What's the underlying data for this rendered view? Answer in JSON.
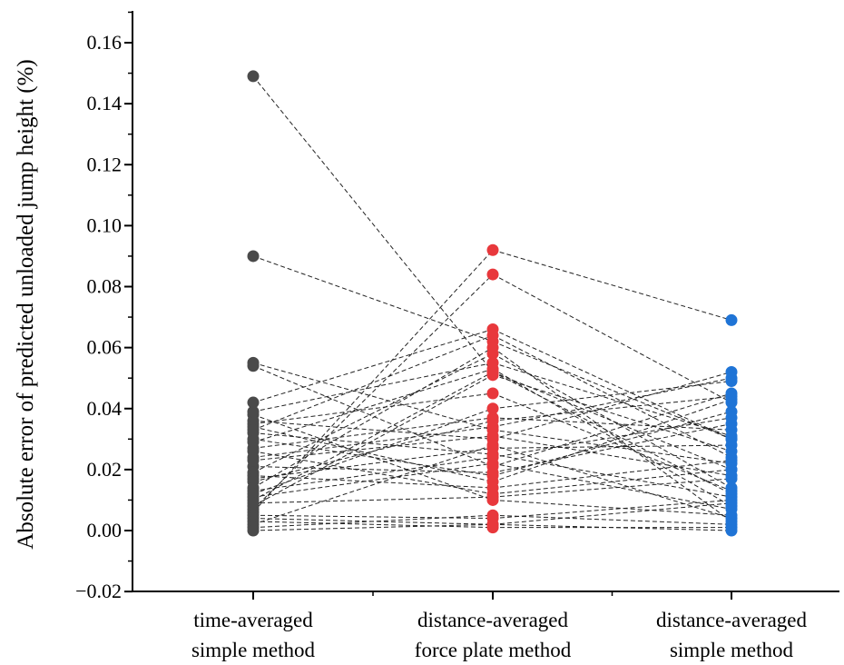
{
  "chart_data": {
    "type": "scatter",
    "ylabel": "Absolute error of predicted unloaded jump height (%)",
    "ylim": [
      -0.02,
      0.17
    ],
    "yticks": [
      "-0.02",
      "0.00",
      "0.02",
      "0.04",
      "0.06",
      "0.08",
      "0.10",
      "0.12",
      "0.14",
      "0.16"
    ],
    "categories": [
      {
        "line1": "time-averaged",
        "line2": "simple method"
      },
      {
        "line1": "distance-averaged",
        "line2": "force plate method"
      },
      {
        "line1": "distance-averaged",
        "line2": "simple method"
      }
    ],
    "colors": [
      "#4a4a4a",
      "#e8383c",
      "#1f74d6"
    ],
    "grid": false,
    "connector_style": "dashed",
    "subjects": [
      [
        0.149,
        0.052,
        0.02
      ],
      [
        0.09,
        0.062,
        0.03
      ],
      [
        0.055,
        0.033,
        0.022
      ],
      [
        0.054,
        0.021,
        0.045
      ],
      [
        0.042,
        0.066,
        0.03
      ],
      [
        0.038,
        0.01,
        0.005
      ],
      [
        0.036,
        0.03,
        0.052
      ],
      [
        0.035,
        0.045,
        0.013
      ],
      [
        0.034,
        0.016,
        0.043
      ],
      [
        0.032,
        0.025,
        0.011
      ],
      [
        0.03,
        0.018,
        0.039
      ],
      [
        0.029,
        0.053,
        0.008
      ],
      [
        0.027,
        0.037,
        0.033
      ],
      [
        0.026,
        0.012,
        0.02
      ],
      [
        0.024,
        0.034,
        0.05
      ],
      [
        0.021,
        0.019,
        0.035
      ],
      [
        0.019,
        0.058,
        0.014
      ],
      [
        0.018,
        0.014,
        0.023
      ],
      [
        0.017,
        0.027,
        0.028
      ],
      [
        0.016,
        0.036,
        0.044
      ],
      [
        0.014,
        0.06,
        0.003
      ],
      [
        0.013,
        0.024,
        0.037
      ],
      [
        0.012,
        0.04,
        0.049
      ],
      [
        0.011,
        0.022,
        0.007
      ],
      [
        0.01,
        0.052,
        0.012
      ],
      [
        0.009,
        0.011,
        0.017
      ],
      [
        0.008,
        0.051,
        0.026
      ],
      [
        0.007,
        0.084,
        0.042
      ],
      [
        0.006,
        0.092,
        0.069
      ],
      [
        0.005,
        0.004,
        0.01
      ],
      [
        0.004,
        0.002,
        0.009
      ],
      [
        0.003,
        0.001,
        0.001
      ],
      [
        0.002,
        0.028,
        0.004
      ],
      [
        0.001,
        0.005,
        0.002
      ],
      [
        0.0,
        0.002,
        0.0
      ],
      [
        0.039,
        0.055,
        0.031
      ],
      [
        0.023,
        0.031,
        0.018
      ],
      [
        0.033,
        0.064,
        0.024
      ]
    ]
  }
}
